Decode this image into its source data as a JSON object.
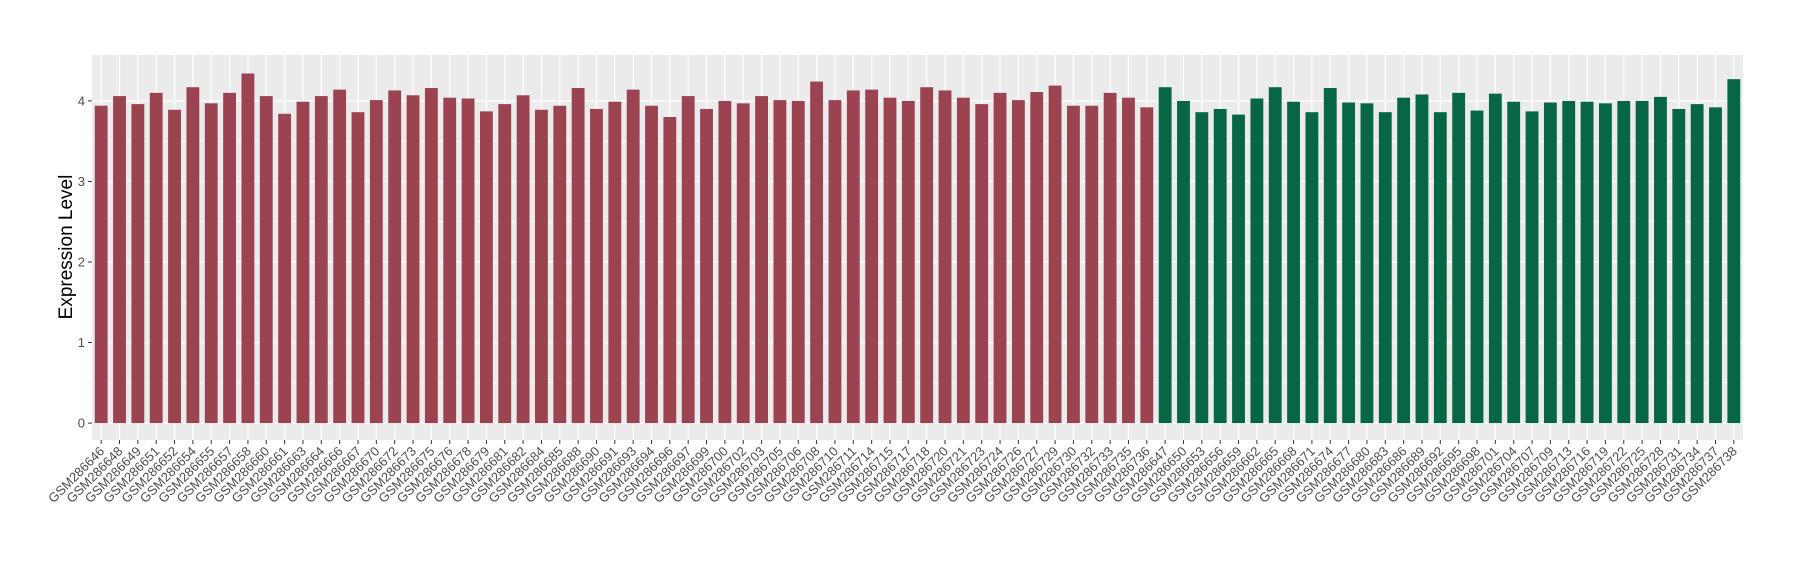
{
  "chart_data": {
    "type": "bar",
    "y_label": "Expression Level",
    "categories": [
      "GSM286646",
      "GSM286648",
      "GSM286649",
      "GSM286651",
      "GSM286652",
      "GSM286654",
      "GSM286655",
      "GSM286657",
      "GSM286658",
      "GSM286660",
      "GSM286661",
      "GSM286663",
      "GSM286664",
      "GSM286666",
      "GSM286667",
      "GSM286670",
      "GSM286672",
      "GSM286673",
      "GSM286675",
      "GSM286676",
      "GSM286678",
      "GSM286679",
      "GSM286681",
      "GSM286682",
      "GSM286684",
      "GSM286685",
      "GSM286688",
      "GSM286690",
      "GSM286691",
      "GSM286693",
      "GSM286694",
      "GSM286696",
      "GSM286697",
      "GSM286699",
      "GSM286700",
      "GSM286702",
      "GSM286703",
      "GSM286705",
      "GSM286706",
      "GSM286708",
      "GSM286710",
      "GSM286711",
      "GSM286714",
      "GSM286715",
      "GSM286717",
      "GSM286718",
      "GSM286720",
      "GSM286721",
      "GSM286723",
      "GSM286724",
      "GSM286726",
      "GSM286727",
      "GSM286729",
      "GSM286730",
      "GSM286732",
      "GSM286733",
      "GSM286735",
      "GSM286736",
      "GSM286647",
      "GSM286650",
      "GSM286653",
      "GSM286656",
      "GSM286659",
      "GSM286662",
      "GSM286665",
      "GSM286668",
      "GSM286671",
      "GSM286674",
      "GSM286677",
      "GSM286680",
      "GSM286683",
      "GSM286686",
      "GSM286689",
      "GSM286692",
      "GSM286695",
      "GSM286698",
      "GSM286701",
      "GSM286704",
      "GSM286707",
      "GSM286709",
      "GSM286713",
      "GSM286716",
      "GSM286719",
      "GSM286722",
      "GSM286725",
      "GSM286728",
      "GSM286731",
      "GSM286734",
      "GSM286737",
      "GSM286738"
    ],
    "values": [
      3.94,
      4.06,
      3.96,
      4.1,
      3.89,
      4.17,
      3.97,
      4.1,
      4.34,
      4.06,
      3.84,
      3.99,
      4.06,
      4.14,
      3.86,
      4.01,
      4.13,
      4.07,
      4.16,
      4.04,
      4.03,
      3.87,
      3.96,
      4.07,
      3.89,
      3.94,
      4.16,
      3.9,
      3.99,
      4.14,
      3.94,
      3.8,
      4.06,
      3.9,
      4.0,
      3.97,
      4.06,
      4.01,
      4.0,
      4.24,
      4.01,
      4.13,
      4.14,
      4.04,
      4.0,
      4.17,
      4.13,
      4.04,
      3.96,
      4.1,
      4.01,
      4.11,
      4.19,
      3.94,
      3.94,
      4.1,
      4.04,
      3.92,
      4.17,
      4.0,
      3.86,
      3.9,
      3.83,
      4.03,
      4.17,
      3.99,
      3.86,
      4.16,
      3.98,
      3.97,
      3.86,
      4.04,
      4.08,
      3.86,
      4.1,
      3.88,
      4.09,
      3.99,
      3.87,
      3.98,
      4.0,
      3.99,
      3.97,
      4.0,
      4.0,
      4.05,
      3.9,
      3.96,
      3.92,
      4.27
    ],
    "colors": [
      "#9b4350",
      "#9b4350",
      "#9b4350",
      "#9b4350",
      "#9b4350",
      "#9b4350",
      "#9b4350",
      "#9b4350",
      "#9b4350",
      "#9b4350",
      "#9b4350",
      "#9b4350",
      "#9b4350",
      "#9b4350",
      "#9b4350",
      "#9b4350",
      "#9b4350",
      "#9b4350",
      "#9b4350",
      "#9b4350",
      "#9b4350",
      "#9b4350",
      "#9b4350",
      "#9b4350",
      "#9b4350",
      "#9b4350",
      "#9b4350",
      "#9b4350",
      "#9b4350",
      "#9b4350",
      "#9b4350",
      "#9b4350",
      "#9b4350",
      "#9b4350",
      "#9b4350",
      "#9b4350",
      "#9b4350",
      "#9b4350",
      "#9b4350",
      "#9b4350",
      "#9b4350",
      "#9b4350",
      "#9b4350",
      "#9b4350",
      "#9b4350",
      "#9b4350",
      "#9b4350",
      "#9b4350",
      "#9b4350",
      "#9b4350",
      "#9b4350",
      "#9b4350",
      "#9b4350",
      "#9b4350",
      "#9b4350",
      "#9b4350",
      "#9b4350",
      "#9b4350",
      "#076745",
      "#076745",
      "#076745",
      "#076745",
      "#076745",
      "#076745",
      "#076745",
      "#076745",
      "#076745",
      "#076745",
      "#076745",
      "#076745",
      "#076745",
      "#076745",
      "#076745",
      "#076745",
      "#076745",
      "#076745",
      "#076745",
      "#076745",
      "#076745",
      "#076745",
      "#076745",
      "#076745",
      "#076745",
      "#076745",
      "#076745",
      "#076745",
      "#076745",
      "#076745",
      "#076745",
      "#076745"
    ],
    "ylim": [
      -0.21,
      4.57
    ],
    "yticks": [
      0,
      1,
      2,
      3,
      4
    ],
    "grid": true
  }
}
